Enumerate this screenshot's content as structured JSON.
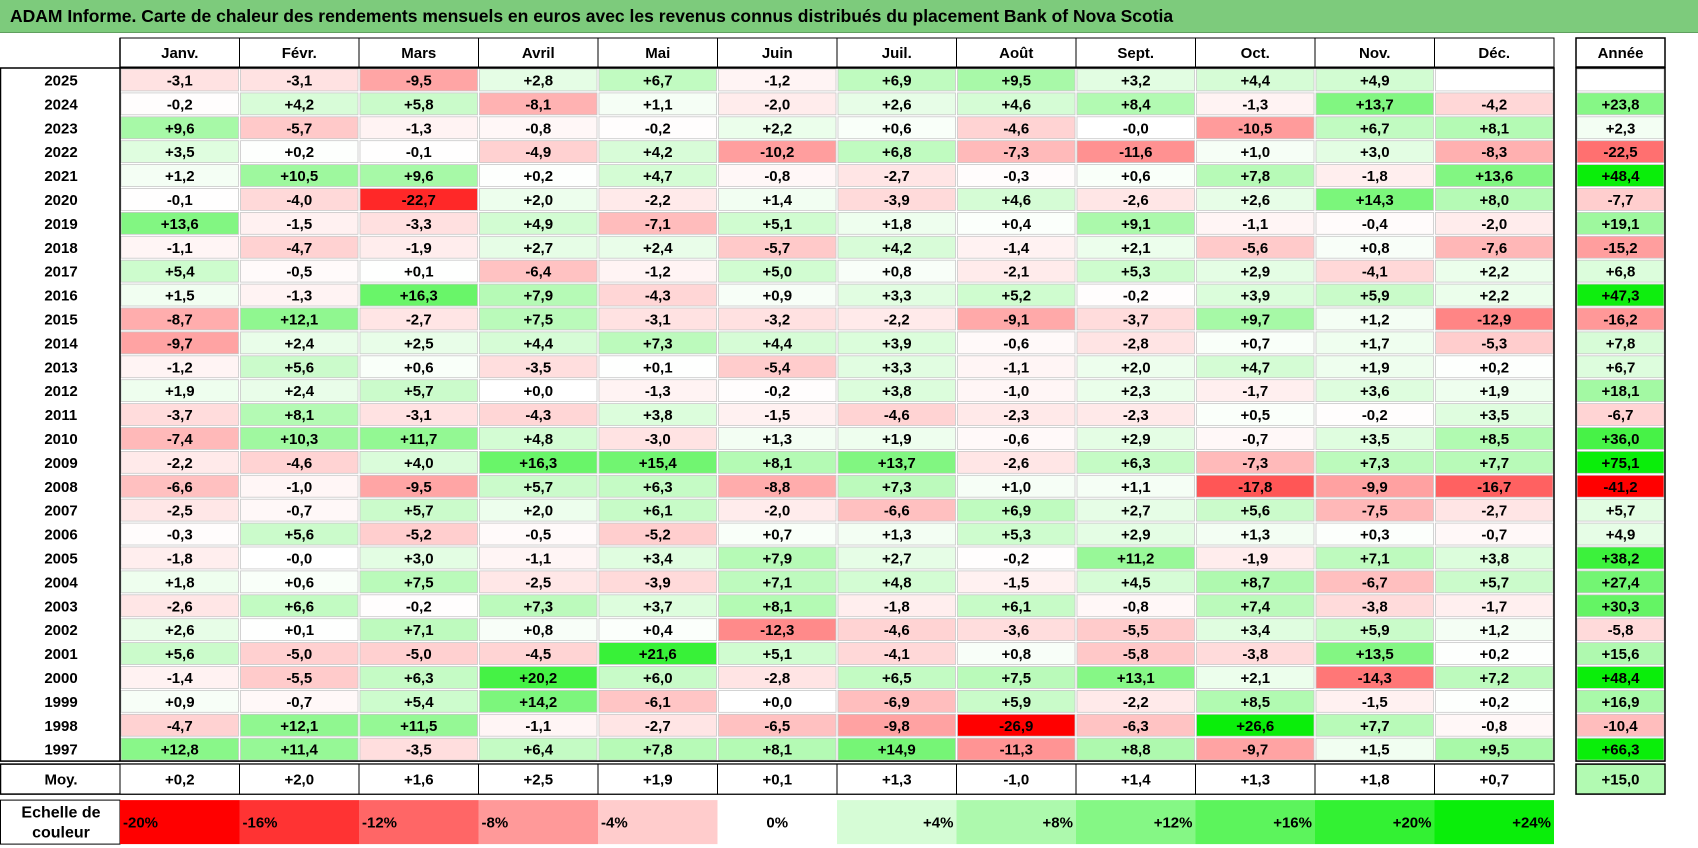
{
  "title": "ADAM Informe. Carte de chaleur des rendements mensuels en euros avec les revenus connus distribués du placement Bank of Nova Scotia",
  "chart_data": {
    "type": "heatmap",
    "title": "ADAM Informe. Carte de chaleur des rendements mensuels en euros avec les revenus connus distribués du placement Bank of Nova Scotia",
    "months": [
      "Janv.",
      "Févr.",
      "Mars",
      "Avril",
      "Mai",
      "Juin",
      "Juil.",
      "Août",
      "Sept.",
      "Oct.",
      "Nov.",
      "Déc."
    ],
    "year_header": "Année",
    "avg_label": "Moy.",
    "rows": [
      {
        "year": "2025",
        "values": [
          -3.1,
          -3.1,
          -9.5,
          2.8,
          6.7,
          -1.2,
          6.9,
          9.5,
          3.2,
          4.4,
          4.9,
          null
        ],
        "total": null
      },
      {
        "year": "2024",
        "values": [
          -0.2,
          4.2,
          5.8,
          -8.1,
          1.1,
          -2.0,
          2.6,
          4.6,
          8.4,
          -1.3,
          13.7,
          -4.2
        ],
        "total": 23.8
      },
      {
        "year": "2023",
        "values": [
          9.6,
          -5.7,
          -1.3,
          -0.8,
          -0.2,
          2.2,
          0.6,
          -4.6,
          -0.0,
          -10.5,
          6.7,
          8.1
        ],
        "total": 2.3
      },
      {
        "year": "2022",
        "values": [
          3.5,
          0.2,
          -0.1,
          -4.9,
          4.2,
          -10.2,
          6.8,
          -7.3,
          -11.6,
          1.0,
          3.0,
          -8.3
        ],
        "total": -22.5
      },
      {
        "year": "2021",
        "values": [
          1.2,
          10.5,
          9.6,
          0.2,
          4.7,
          -0.8,
          -2.7,
          -0.3,
          0.6,
          7.8,
          -1.8,
          13.6
        ],
        "total": 48.4
      },
      {
        "year": "2020",
        "values": [
          -0.1,
          -4.0,
          -22.7,
          2.0,
          -2.2,
          1.4,
          -3.9,
          4.6,
          -2.6,
          2.6,
          14.3,
          8.0
        ],
        "total": -7.7
      },
      {
        "year": "2019",
        "values": [
          13.6,
          -1.5,
          -3.3,
          4.9,
          -7.1,
          5.1,
          1.8,
          0.4,
          9.1,
          -1.1,
          -0.4,
          -2.0
        ],
        "total": 19.1
      },
      {
        "year": "2018",
        "values": [
          -1.1,
          -4.7,
          -1.9,
          2.7,
          2.4,
          -5.7,
          4.2,
          -1.4,
          2.1,
          -5.6,
          0.8,
          -7.6
        ],
        "total": -15.2
      },
      {
        "year": "2017",
        "values": [
          5.4,
          -0.5,
          0.1,
          -6.4,
          -1.2,
          5.0,
          0.8,
          -2.1,
          5.3,
          2.9,
          -4.1,
          2.2
        ],
        "total": 6.8
      },
      {
        "year": "2016",
        "values": [
          1.5,
          -1.3,
          16.3,
          7.9,
          -4.3,
          0.9,
          3.3,
          5.2,
          -0.2,
          3.9,
          5.9,
          2.2
        ],
        "total": 47.3
      },
      {
        "year": "2015",
        "values": [
          -8.7,
          12.1,
          -2.7,
          7.5,
          -3.1,
          -3.2,
          -2.2,
          -9.1,
          -3.7,
          9.7,
          1.2,
          -12.9
        ],
        "total": -16.2
      },
      {
        "year": "2014",
        "values": [
          -9.7,
          2.4,
          2.5,
          4.4,
          7.3,
          4.4,
          3.9,
          -0.6,
          -2.8,
          0.7,
          1.7,
          -5.3
        ],
        "total": 7.8
      },
      {
        "year": "2013",
        "values": [
          -1.2,
          5.6,
          0.6,
          -3.5,
          0.1,
          -5.4,
          3.3,
          -1.1,
          2.0,
          4.7,
          1.9,
          0.2
        ],
        "total": 6.7
      },
      {
        "year": "2012",
        "values": [
          1.9,
          2.4,
          5.7,
          0.0,
          -1.3,
          -0.2,
          3.8,
          -1.0,
          2.3,
          -1.7,
          3.6,
          1.9
        ],
        "total": 18.1
      },
      {
        "year": "2011",
        "values": [
          -3.7,
          8.1,
          -3.1,
          -4.3,
          3.8,
          -1.5,
          -4.6,
          -2.3,
          -2.3,
          0.5,
          -0.2,
          3.5
        ],
        "total": -6.7
      },
      {
        "year": "2010",
        "values": [
          -7.4,
          10.3,
          11.7,
          4.8,
          -3.0,
          1.3,
          1.9,
          -0.6,
          2.9,
          -0.7,
          3.5,
          8.5
        ],
        "total": 36.0
      },
      {
        "year": "2009",
        "values": [
          -2.2,
          -4.6,
          4.0,
          16.3,
          15.4,
          8.1,
          13.7,
          -2.6,
          6.3,
          -7.3,
          7.3,
          7.7
        ],
        "total": 75.1
      },
      {
        "year": "2008",
        "values": [
          -6.6,
          -1.0,
          -9.5,
          5.7,
          6.3,
          -8.8,
          7.3,
          1.0,
          1.1,
          -17.8,
          -9.9,
          -16.7
        ],
        "total": -41.2
      },
      {
        "year": "2007",
        "values": [
          -2.5,
          -0.7,
          5.7,
          2.0,
          6.1,
          -2.0,
          -6.6,
          6.9,
          2.7,
          5.6,
          -7.5,
          -2.7
        ],
        "total": 5.7
      },
      {
        "year": "2006",
        "values": [
          -0.3,
          5.6,
          -5.2,
          -0.5,
          -5.2,
          0.7,
          1.3,
          5.3,
          2.9,
          1.3,
          0.3,
          -0.7
        ],
        "total": 4.9
      },
      {
        "year": "2005",
        "values": [
          -1.8,
          -0.0,
          3.0,
          -1.1,
          3.4,
          7.9,
          2.7,
          -0.2,
          11.2,
          -1.9,
          7.1,
          3.8
        ],
        "total": 38.2
      },
      {
        "year": "2004",
        "values": [
          1.8,
          0.6,
          7.5,
          -2.5,
          -3.9,
          7.1,
          4.8,
          -1.5,
          4.5,
          8.7,
          -6.7,
          5.7
        ],
        "total": 27.4
      },
      {
        "year": "2003",
        "values": [
          -2.6,
          6.6,
          -0.2,
          7.3,
          3.7,
          8.1,
          -1.8,
          6.1,
          -0.8,
          7.4,
          -3.8,
          -1.7
        ],
        "total": 30.3
      },
      {
        "year": "2002",
        "values": [
          2.6,
          0.1,
          7.1,
          0.8,
          0.4,
          -12.3,
          -4.6,
          -3.6,
          -5.5,
          3.4,
          5.9,
          1.2
        ],
        "total": -5.8
      },
      {
        "year": "2001",
        "values": [
          5.6,
          -5.0,
          -5.0,
          -4.5,
          21.6,
          5.1,
          -4.1,
          0.8,
          -5.8,
          -3.8,
          13.5,
          0.2
        ],
        "total": 15.6
      },
      {
        "year": "2000",
        "values": [
          -1.4,
          -5.5,
          6.3,
          20.2,
          6.0,
          -2.8,
          6.5,
          7.5,
          13.1,
          2.1,
          -14.3,
          7.2
        ],
        "total": 48.4
      },
      {
        "year": "1999",
        "values": [
          0.9,
          -0.7,
          5.4,
          14.2,
          -6.1,
          0.0,
          -6.9,
          5.9,
          -2.2,
          8.5,
          -1.5,
          0.2
        ],
        "total": 16.9
      },
      {
        "year": "1998",
        "values": [
          -4.7,
          12.1,
          11.5,
          -1.1,
          -2.7,
          -6.5,
          -9.8,
          -26.9,
          -6.3,
          26.6,
          7.7,
          -0.8
        ],
        "total": -10.4
      },
      {
        "year": "1997",
        "values": [
          12.8,
          11.4,
          -3.5,
          6.4,
          7.8,
          8.1,
          14.9,
          -11.3,
          8.8,
          -9.7,
          1.5,
          9.5
        ],
        "total": 66.3
      }
    ],
    "averages": [
      0.2,
      2.0,
      1.6,
      2.5,
      1.9,
      0.1,
      1.3,
      -1.0,
      1.4,
      1.3,
      1.8,
      0.7
    ],
    "average_total": 15.0,
    "scale_label_line1": "Echelle de",
    "scale_label_line2": "couleur",
    "scale": [
      {
        "label": "-20%",
        "value": -20,
        "color": "#ff0000"
      },
      {
        "label": "-16%",
        "value": -16,
        "color": "#ff3333"
      },
      {
        "label": "-12%",
        "value": -12,
        "color": "#ff6666"
      },
      {
        "label": "-8%",
        "value": -8,
        "color": "#ff9999"
      },
      {
        "label": "-4%",
        "value": -4,
        "color": "#ffcccc"
      },
      {
        "label": "0%",
        "value": 0,
        "color": "#ffffff"
      },
      {
        "label": "+4%",
        "value": 4,
        "color": "#d6fcd6"
      },
      {
        "label": "+8%",
        "value": 8,
        "color": "#adf9ad"
      },
      {
        "label": "+12%",
        "value": 12,
        "color": "#85f785"
      },
      {
        "label": "+16%",
        "value": 16,
        "color": "#5cf45c"
      },
      {
        "label": "+20%",
        "value": 20,
        "color": "#33f133"
      },
      {
        "label": "+24%",
        "value": 24,
        "color": "#0aee0a"
      }
    ],
    "year_scale": {
      "neg_max": -40,
      "pos_max": 48
    }
  }
}
